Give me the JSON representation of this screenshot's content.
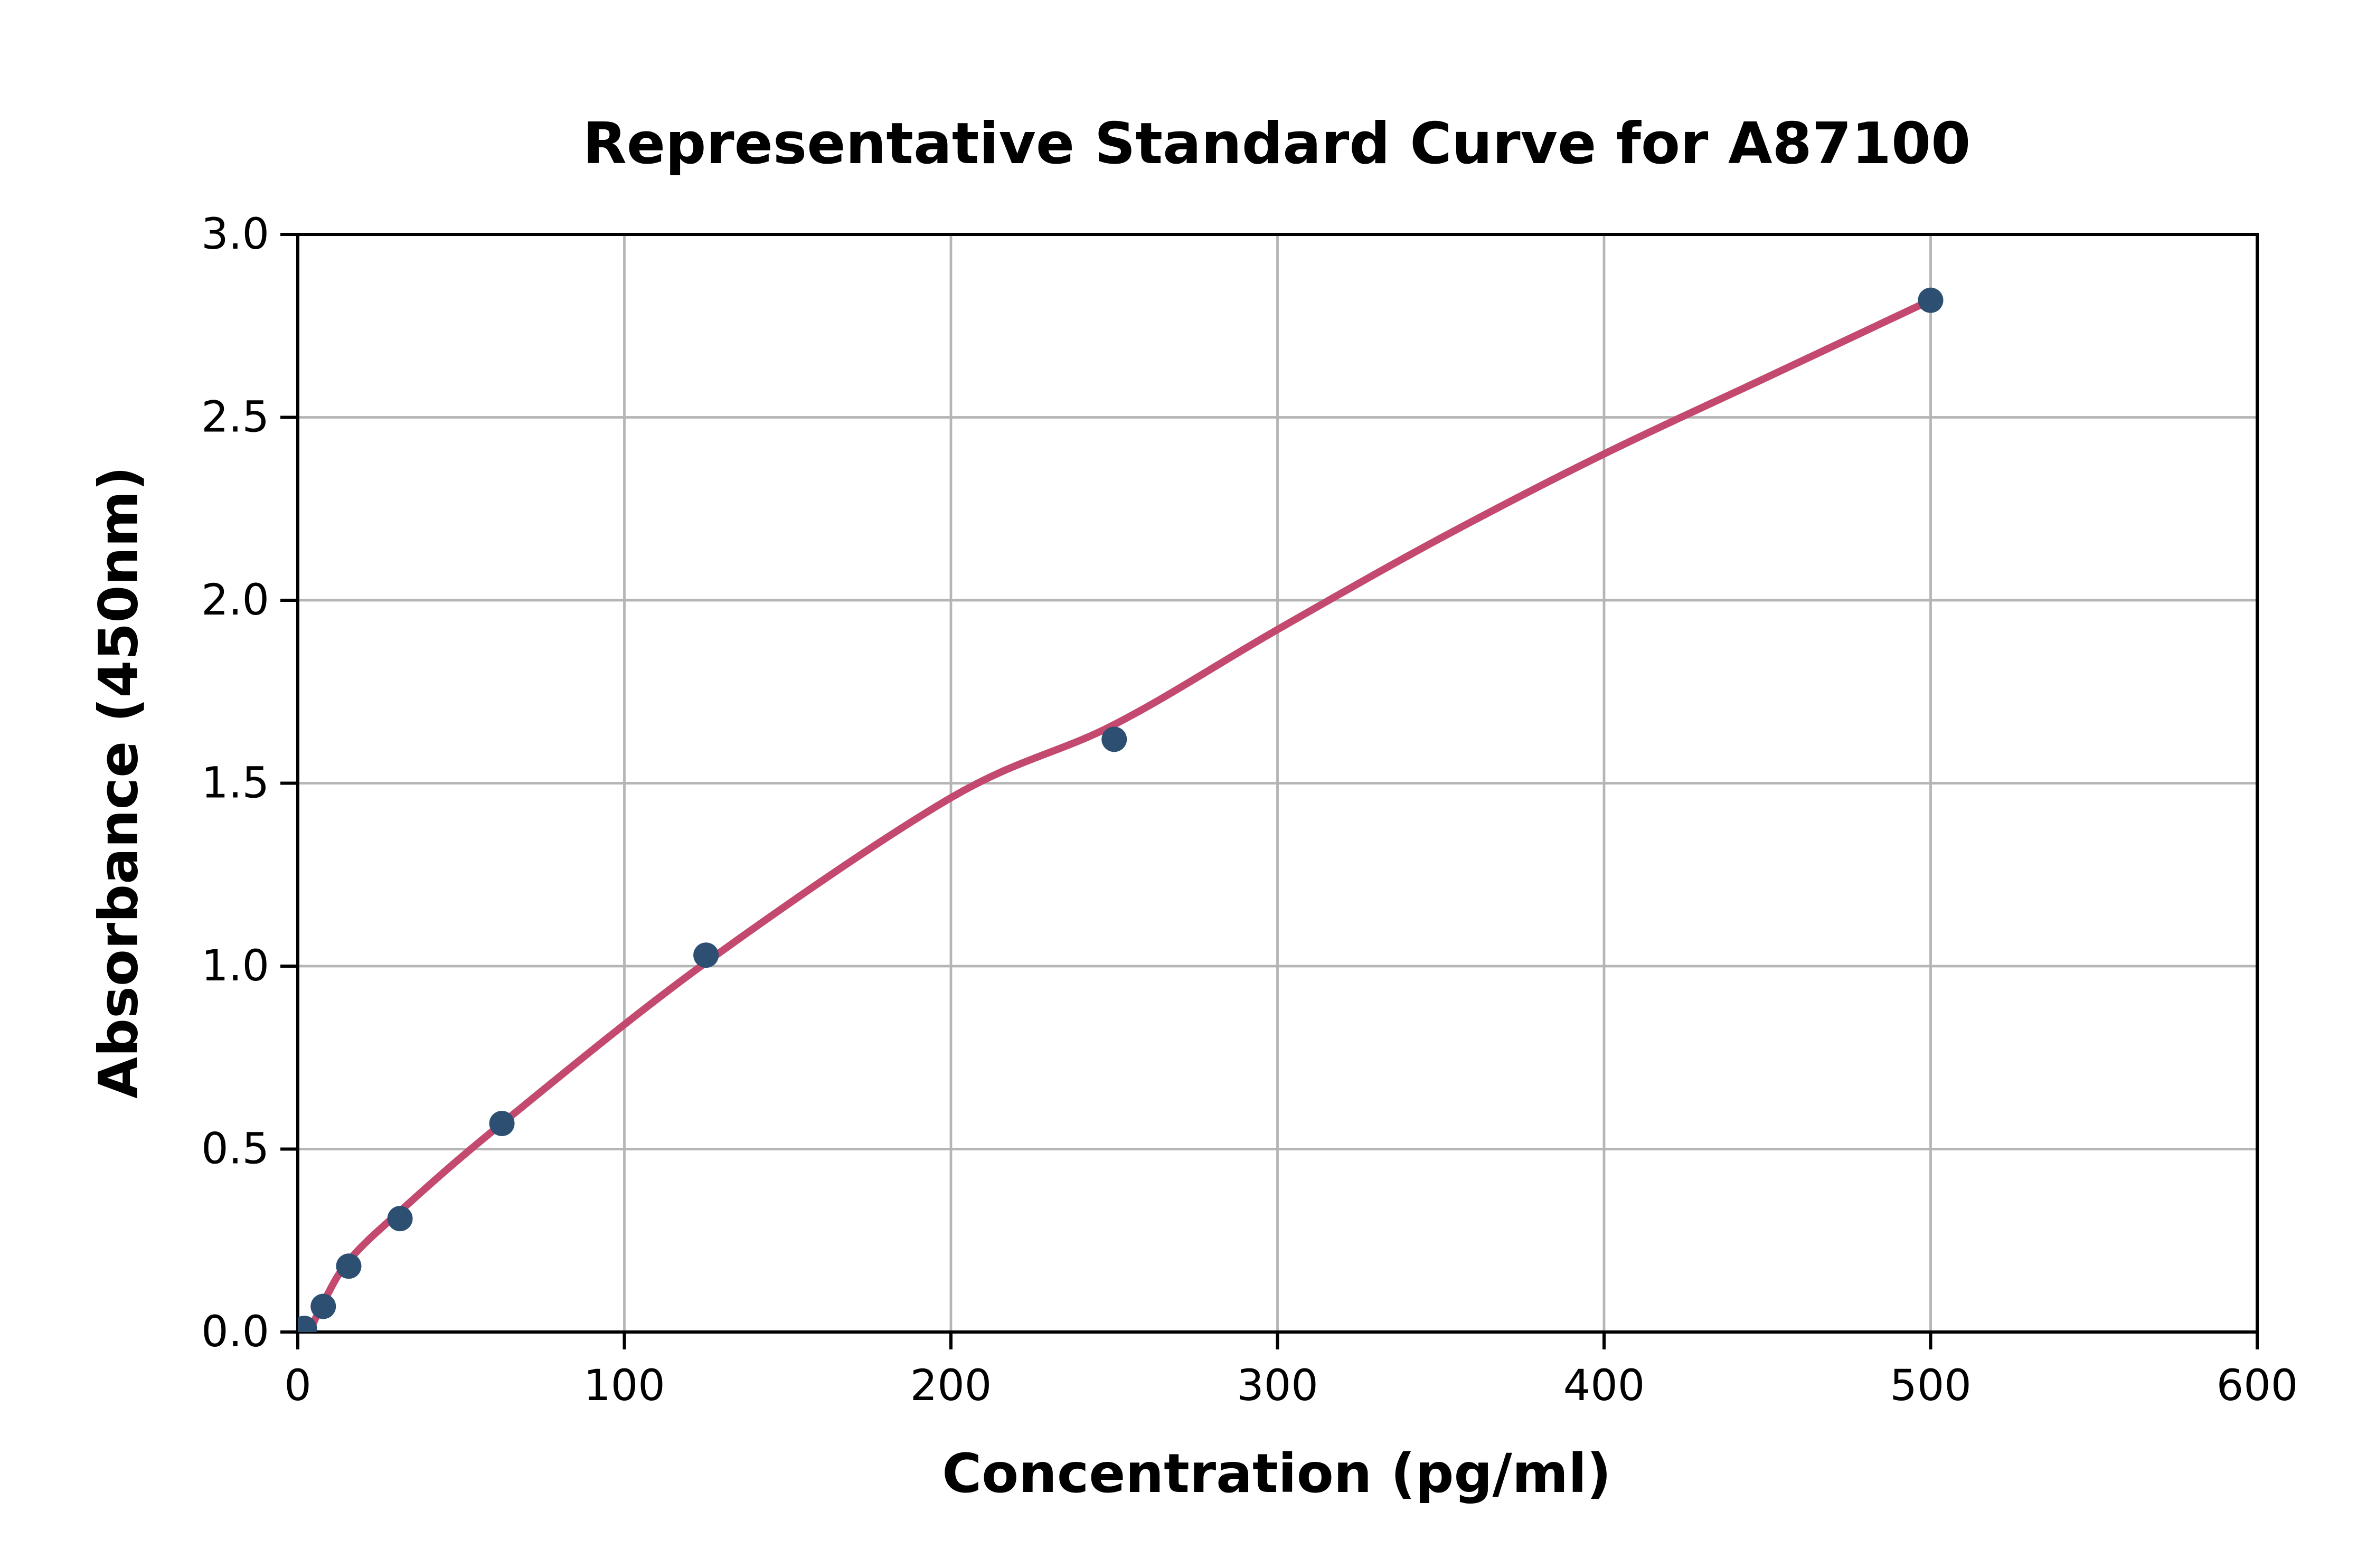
{
  "chart_data": {
    "type": "scatter",
    "title": "Representative Standard Curve for A87100",
    "xlabel": "Concentration (pg/ml)",
    "ylabel": "Absorbance (450nm)",
    "xlim": [
      0,
      600
    ],
    "ylim": [
      0.0,
      3.0
    ],
    "x_ticks": [
      0,
      100,
      200,
      300,
      400,
      500,
      600
    ],
    "x_tick_labels": [
      "0",
      "100",
      "200",
      "300",
      "400",
      "500",
      "600"
    ],
    "y_ticks": [
      0.0,
      0.5,
      1.0,
      1.5,
      2.0,
      2.5,
      3.0
    ],
    "y_tick_labels": [
      "0.0",
      "0.5",
      "1.0",
      "1.5",
      "2.0",
      "2.5",
      "3.0"
    ],
    "grid": true,
    "legend": false,
    "points": [
      {
        "x": 2,
        "y": 0.01
      },
      {
        "x": 7.8,
        "y": 0.07
      },
      {
        "x": 15.6,
        "y": 0.18
      },
      {
        "x": 31.3,
        "y": 0.31
      },
      {
        "x": 62.5,
        "y": 0.57
      },
      {
        "x": 125,
        "y": 1.03
      },
      {
        "x": 250,
        "y": 1.62
      },
      {
        "x": 500,
        "y": 2.82
      }
    ],
    "fit_curve": [
      {
        "x": 2.5,
        "y": -0.02
      },
      {
        "x": 7.8,
        "y": 0.08
      },
      {
        "x": 15.6,
        "y": 0.195
      },
      {
        "x": 31.3,
        "y": 0.33
      },
      {
        "x": 62.5,
        "y": 0.57
      },
      {
        "x": 125,
        "y": 1.01
      },
      {
        "x": 200,
        "y": 1.46
      },
      {
        "x": 250,
        "y": 1.66
      },
      {
        "x": 300,
        "y": 1.92
      },
      {
        "x": 350,
        "y": 2.17
      },
      {
        "x": 400,
        "y": 2.4
      },
      {
        "x": 450,
        "y": 2.61
      },
      {
        "x": 500,
        "y": 2.82
      }
    ],
    "colors": {
      "marker": "#2d5072",
      "curve": "#c4496f",
      "grid": "#b5b5b5",
      "axis": "#000000",
      "background": "#ffffff"
    }
  }
}
